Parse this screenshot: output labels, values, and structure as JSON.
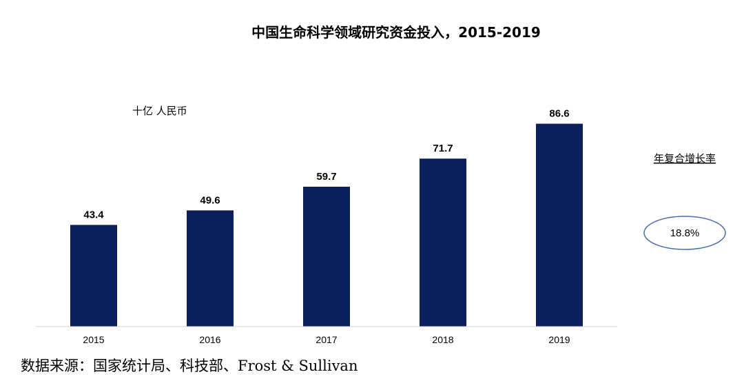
{
  "chart_data": {
    "type": "bar",
    "title": "中国生命科学领域研究资金投入，2015-2019",
    "unit_label": "十亿 人民币",
    "categories": [
      "2015",
      "2016",
      "2017",
      "2018",
      "2019"
    ],
    "values": [
      43.4,
      49.6,
      59.7,
      71.7,
      86.6
    ],
    "value_labels": [
      "43.4",
      "49.6",
      "59.7",
      "71.7",
      "86.6"
    ],
    "ylim": [
      0,
      100
    ],
    "grid": false,
    "bar_color": "#0a1f5c",
    "cagr": {
      "label": "年复合增长率",
      "value": "18.8%",
      "ellipse_color": "#4a6fb0"
    }
  },
  "source": "数据来源：国家统计局、科技部、Frost & Sullivan"
}
